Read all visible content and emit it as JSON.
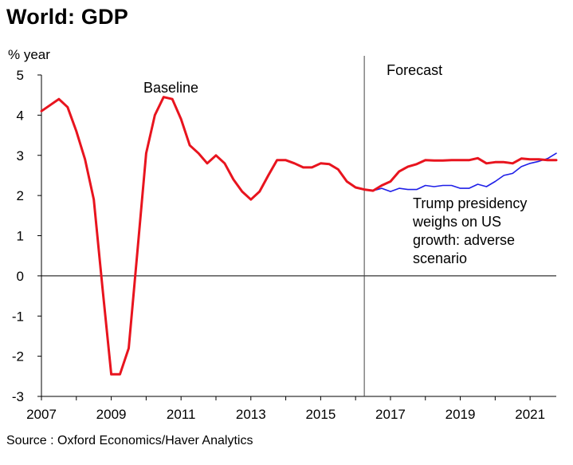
{
  "chart_data": {
    "type": "line",
    "title": "World: GDP",
    "ylabel": "% year",
    "source": "Source : Oxford Economics/Haver Analytics",
    "ylim": [
      -3,
      5
    ],
    "xlim": [
      2007,
      2021.75
    ],
    "y_ticks": [
      "5",
      "4",
      "3",
      "2",
      "1",
      "0",
      "-1",
      "-2",
      "-3"
    ],
    "x_ticks": [
      "2007",
      "2009",
      "2011",
      "2013",
      "2015",
      "2017",
      "2019",
      "2021"
    ],
    "forecast_start": 2016.25,
    "annotations": {
      "forecast": "Forecast",
      "baseline": "Baseline",
      "adverse": [
        "Trump presidency",
        "weighs on US",
        "growth: adverse",
        "scenario"
      ]
    },
    "series": [
      {
        "key": "baseline",
        "color": "#e8141e",
        "points": [
          [
            2007.0,
            4.1
          ],
          [
            2007.25,
            4.25
          ],
          [
            2007.5,
            4.4
          ],
          [
            2007.75,
            4.2
          ],
          [
            2008.0,
            3.6
          ],
          [
            2008.25,
            2.9
          ],
          [
            2008.5,
            1.9
          ],
          [
            2008.75,
            -0.3
          ],
          [
            2009.0,
            -2.45
          ],
          [
            2009.25,
            -2.45
          ],
          [
            2009.5,
            -1.8
          ],
          [
            2009.75,
            0.6
          ],
          [
            2010.0,
            3.05
          ],
          [
            2010.25,
            4.0
          ],
          [
            2010.5,
            4.45
          ],
          [
            2010.75,
            4.4
          ],
          [
            2011.0,
            3.9
          ],
          [
            2011.25,
            3.25
          ],
          [
            2011.5,
            3.05
          ],
          [
            2011.75,
            2.8
          ],
          [
            2012.0,
            3.0
          ],
          [
            2012.25,
            2.8
          ],
          [
            2012.5,
            2.4
          ],
          [
            2012.75,
            2.1
          ],
          [
            2013.0,
            1.9
          ],
          [
            2013.25,
            2.1
          ],
          [
            2013.5,
            2.5
          ],
          [
            2013.75,
            2.88
          ],
          [
            2014.0,
            2.88
          ],
          [
            2014.25,
            2.8
          ],
          [
            2014.5,
            2.7
          ],
          [
            2014.75,
            2.7
          ],
          [
            2015.0,
            2.8
          ],
          [
            2015.25,
            2.78
          ],
          [
            2015.5,
            2.65
          ],
          [
            2015.75,
            2.35
          ],
          [
            2016.0,
            2.2
          ],
          [
            2016.25,
            2.15
          ],
          [
            2016.5,
            2.12
          ],
          [
            2016.75,
            2.25
          ],
          [
            2017.0,
            2.35
          ],
          [
            2017.25,
            2.6
          ],
          [
            2017.5,
            2.72
          ],
          [
            2017.75,
            2.78
          ],
          [
            2018.0,
            2.88
          ],
          [
            2018.25,
            2.87
          ],
          [
            2018.5,
            2.87
          ],
          [
            2018.75,
            2.88
          ],
          [
            2019.0,
            2.88
          ],
          [
            2019.25,
            2.88
          ],
          [
            2019.5,
            2.93
          ],
          [
            2019.75,
            2.8
          ],
          [
            2020.0,
            2.83
          ],
          [
            2020.25,
            2.83
          ],
          [
            2020.5,
            2.8
          ],
          [
            2020.75,
            2.92
          ],
          [
            2021.0,
            2.9
          ],
          [
            2021.25,
            2.9
          ],
          [
            2021.5,
            2.88
          ],
          [
            2021.75,
            2.88
          ]
        ]
      },
      {
        "key": "adverse",
        "color": "#1f1fe8",
        "points": [
          [
            2016.5,
            2.12
          ],
          [
            2016.75,
            2.18
          ],
          [
            2017.0,
            2.1
          ],
          [
            2017.25,
            2.18
          ],
          [
            2017.5,
            2.15
          ],
          [
            2017.75,
            2.15
          ],
          [
            2018.0,
            2.25
          ],
          [
            2018.25,
            2.22
          ],
          [
            2018.5,
            2.25
          ],
          [
            2018.75,
            2.25
          ],
          [
            2019.0,
            2.18
          ],
          [
            2019.25,
            2.18
          ],
          [
            2019.5,
            2.28
          ],
          [
            2019.75,
            2.22
          ],
          [
            2020.0,
            2.35
          ],
          [
            2020.25,
            2.5
          ],
          [
            2020.5,
            2.55
          ],
          [
            2020.75,
            2.72
          ],
          [
            2021.0,
            2.8
          ],
          [
            2021.25,
            2.85
          ],
          [
            2021.5,
            2.92
          ],
          [
            2021.75,
            3.05
          ]
        ]
      }
    ]
  }
}
